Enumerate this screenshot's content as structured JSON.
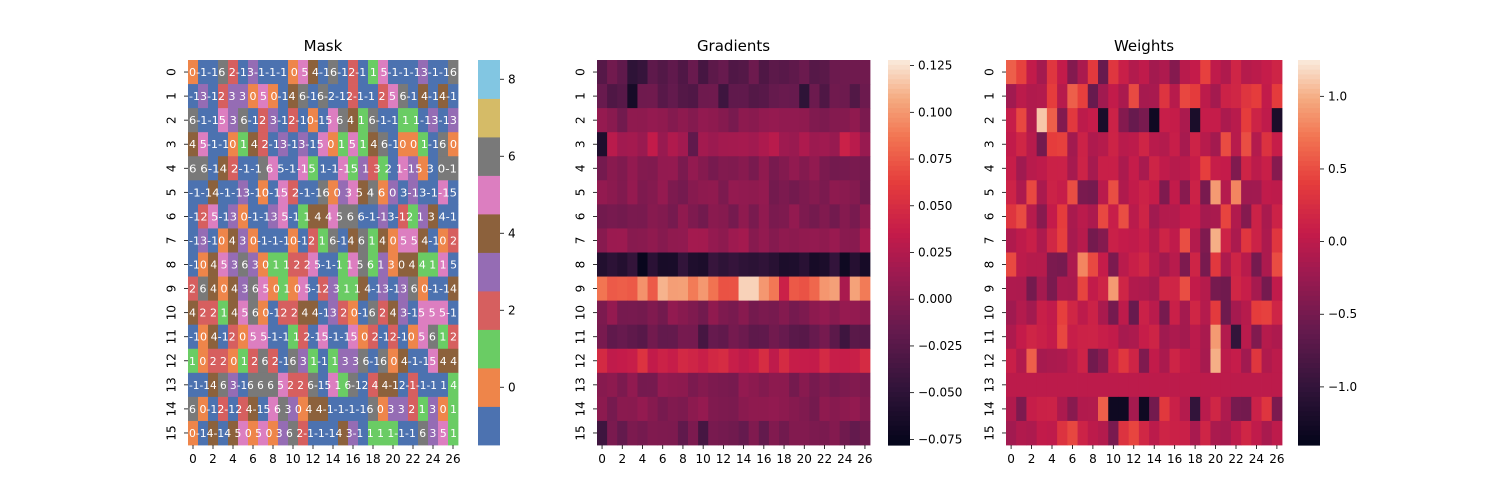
{
  "chart_data": [
    {
      "type": "heatmap",
      "title": "Mask",
      "rows": 16,
      "cols": 27,
      "palette": [
        "#4c72b0",
        "#ee854a",
        "#6acc64",
        "#d65f5f",
        "#956cb4",
        "#8c613c",
        "#dc7ec0",
        "#797979",
        "#d5bb67",
        "#82c6e2"
      ],
      "colorbar_ticks": [
        0,
        2,
        4,
        6,
        8
      ],
      "vmin": -1,
      "vmax": 9,
      "x_ticks": [
        0,
        2,
        4,
        6,
        8,
        10,
        12,
        14,
        16,
        18,
        20,
        22,
        24,
        26
      ],
      "y_ticks": [
        0,
        1,
        2,
        3,
        4,
        5,
        6,
        7,
        8,
        9,
        10,
        11,
        12,
        13,
        14,
        15
      ],
      "annotation_rows": [
        "0-1-16 2-13-1-1-1 0 5 4-16-12-1 1 5-1-1-13-1-16",
        "-13-12 3 3 0 5 0-14 6-16-2-12-1-1 2 5 6-1 4-14-1",
        "6-1-15 3 6-12 3-12-10-15 6 4 1 6-1-1 1 1-13-13",
        "4 5-1-10 1 4 2-13-13-15 0 1 5 1 4 6-10 0 1-16 0",
        "6 6-14 2-1-1 6 5-1-15 1-1-15 1 3 2 1-15 3 0-1",
        "-1-14-1-13-10-15 2-1-16 0 3 5 4 6 0 3-13-1-15",
        "-12 5-13 0-1-13 5-1 1 4 4 5 6 6-1-13-12 1 3 4-1",
        "-13-10 4 3 0-1-1-10-12 1 6-14 6 1 4 0 5 5 4-10 2",
        "-10 4 5 3 6 3 0 1 1 2 2 5-1-1 1 5 6 1 3 0 4 4 1 1 5",
        "2 6 4 0 4 3 6 5 0 1 0 5-12 3 1 1 4-13-13 6 0-1-14",
        "4 2 2 1 4 5 6 0-12 2 4 4-13 2 0-16 2 4 3-15 5 5-1",
        "-10 4-12 0 5 5-1-1 1 2-15-1-15 0 2-12-10 5 6 1 2",
        "1 0 2 2 0 1 2 6 2-16 3 1-1 1 3 3 6-16 0 4-1-15 4 4",
        "-1-14 6 3-16 6 6 5 2 2 6-15 1 6-12 4 4-12-1-1-1 1 4",
        "6 0-12-12 4-15 6 3 0 4 4-1-1-1-16 0 3 3 2 1 3 0 1",
        "0-14-14 5 0 5 0 3 6 2-1-1-14 3-1 1 1 1-1-1 6 3 5 1"
      ]
    },
    {
      "type": "heatmap",
      "title": "Gradients",
      "rows": 16,
      "cols": 27,
      "vmin": -0.078,
      "vmax": 0.128,
      "colorbar_ticks": [
        -0.075,
        -0.05,
        -0.025,
        0.0,
        0.025,
        0.05,
        0.075,
        0.1,
        0.125
      ],
      "colorbar_labels": [
        "−0.075",
        "−0.050",
        "−0.025",
        "0.000",
        "0.025",
        "0.050",
        "0.075",
        "0.100",
        "0.125"
      ],
      "x_ticks": [
        0,
        2,
        4,
        6,
        8,
        10,
        12,
        14,
        16,
        18,
        20,
        22,
        24,
        26
      ],
      "y_ticks": [
        0,
        1,
        2,
        3,
        4,
        5,
        6,
        7,
        8,
        9,
        10,
        11,
        12,
        13,
        14,
        15
      ],
      "row_levels": [
        -0.02,
        -0.02,
        0.0,
        0.02,
        0.0,
        0.0,
        0.0,
        0.01,
        -0.055,
        0.09,
        0.0,
        -0.015,
        0.04,
        0.0,
        0.0,
        -0.01
      ],
      "cell_overrides": [
        [
          0,
          3,
          -0.05
        ],
        [
          0,
          4,
          -0.045
        ],
        [
          0,
          10,
          -0.035
        ],
        [
          0,
          16,
          -0.03
        ],
        [
          1,
          3,
          -0.065
        ],
        [
          1,
          1,
          -0.03
        ],
        [
          1,
          12,
          -0.04
        ],
        [
          1,
          20,
          -0.05
        ],
        [
          1,
          22,
          -0.03
        ],
        [
          3,
          0,
          -0.06
        ],
        [
          3,
          5,
          0.035
        ],
        [
          3,
          9,
          -0.02
        ],
        [
          3,
          24,
          0.04
        ],
        [
          8,
          4,
          -0.075
        ],
        [
          8,
          19,
          -0.06
        ],
        [
          8,
          21,
          -0.065
        ],
        [
          8,
          24,
          -0.07
        ],
        [
          9,
          6,
          0.11
        ],
        [
          9,
          14,
          0.12
        ],
        [
          9,
          15,
          0.12
        ],
        [
          9,
          18,
          0.04
        ],
        [
          9,
          24,
          0.02
        ],
        [
          9,
          10,
          0.1
        ],
        [
          11,
          10,
          -0.035
        ],
        [
          11,
          24,
          -0.04
        ],
        [
          12,
          4,
          0.055
        ],
        [
          12,
          16,
          0.05
        ],
        [
          15,
          0,
          -0.04
        ],
        [
          15,
          10,
          -0.035
        ]
      ]
    },
    {
      "type": "heatmap",
      "title": "Weights",
      "rows": 16,
      "cols": 27,
      "vmin": -1.4,
      "vmax": 1.25,
      "colorbar_ticks": [
        -1.0,
        -0.5,
        0.0,
        0.5,
        1.0
      ],
      "colorbar_labels": [
        "−1.0",
        "−0.5",
        "0.0",
        "0.5",
        "1.0"
      ],
      "x_ticks": [
        0,
        2,
        4,
        6,
        8,
        10,
        12,
        14,
        16,
        18,
        20,
        22,
        24,
        26
      ],
      "y_ticks": [
        0,
        1,
        2,
        3,
        4,
        5,
        6,
        7,
        8,
        9,
        10,
        11,
        12,
        13,
        14,
        15
      ],
      "base": 0.0,
      "cell_overrides": [
        [
          0,
          0,
          0.6
        ],
        [
          0,
          9,
          -0.6
        ],
        [
          1,
          4,
          0.4
        ],
        [
          1,
          6,
          0.6
        ],
        [
          1,
          8,
          -0.6
        ],
        [
          1,
          24,
          0.4
        ],
        [
          2,
          3,
          1.1
        ],
        [
          2,
          4,
          0.6
        ],
        [
          2,
          9,
          -1.2
        ],
        [
          2,
          14,
          -1.3
        ],
        [
          2,
          18,
          -1.2
        ],
        [
          2,
          26,
          -1.2
        ],
        [
          2,
          12,
          -0.6
        ],
        [
          3,
          4,
          0.4
        ],
        [
          3,
          23,
          0.5
        ],
        [
          3,
          25,
          0.3
        ],
        [
          5,
          6,
          0.5
        ],
        [
          5,
          10,
          0.5
        ],
        [
          5,
          20,
          0.9
        ],
        [
          5,
          22,
          0.8
        ],
        [
          5,
          8,
          -0.5
        ],
        [
          6,
          5,
          0.4
        ],
        [
          6,
          11,
          0.5
        ],
        [
          7,
          20,
          1.0
        ],
        [
          7,
          17,
          0.5
        ],
        [
          8,
          7,
          0.8
        ],
        [
          8,
          24,
          -0.5
        ],
        [
          9,
          10,
          0.9
        ],
        [
          9,
          17,
          0.5
        ],
        [
          9,
          25,
          -0.5
        ],
        [
          10,
          10,
          -0.5
        ],
        [
          10,
          12,
          -0.6
        ],
        [
          10,
          24,
          0.4
        ],
        [
          11,
          20,
          0.9
        ],
        [
          11,
          22,
          -1.0
        ],
        [
          12,
          2,
          0.6
        ],
        [
          12,
          20,
          1.0
        ],
        [
          14,
          10,
          -1.3
        ],
        [
          14,
          11,
          -1.3
        ],
        [
          14,
          13,
          -1.3
        ],
        [
          14,
          18,
          -1.0
        ],
        [
          14,
          9,
          0.6
        ]
      ]
    }
  ]
}
